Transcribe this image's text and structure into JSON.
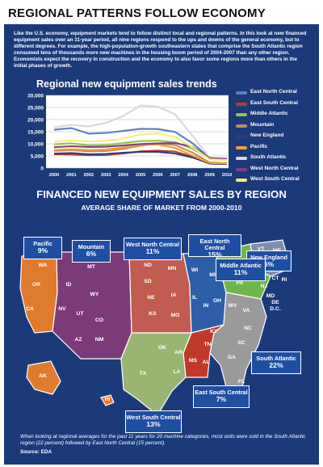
{
  "header": {
    "title": "REGIONAL PATTERNS FOLLOW ECONOMY"
  },
  "intro": "Like the U.S. economy, equipment markets tend to follow distinct local and regional patterns. In this look at new financed equipment sales over an 11-year period, all nine regions respond to the ups and downs of the general economy, but to different degrees. For example, the high-population-growth southeastern states that comprise the South Atlantic region consumed tens of thousands more new machines in the housing boom period of 2004-2007 than any other region. Economists expect the recovery in construction and the economy to also favor some regions more than others in the initial phases of growth.",
  "chart_data": [
    {
      "type": "line",
      "title": "Regional new equipment sales trends",
      "x": [
        "2000",
        "2001",
        "2002",
        "2003",
        "2004",
        "2005",
        "2006",
        "2007",
        "2008",
        "2009",
        "2010"
      ],
      "ylim": [
        0,
        30000
      ],
      "yticks": [
        "0",
        "5,000",
        "10,000",
        "15,000",
        "20,000",
        "25,000",
        "30,000"
      ],
      "grid": true,
      "legend_position": "right",
      "series": [
        {
          "name": "East North Central",
          "color": "#5a7fc0",
          "values": [
            15800,
            16500,
            14200,
            14500,
            15300,
            16200,
            16100,
            14900,
            10300,
            4200,
            4000
          ]
        },
        {
          "name": "East South Central",
          "color": "#c0392b",
          "values": [
            5700,
            5600,
            5300,
            5400,
            6000,
            6900,
            7200,
            6800,
            4700,
            1800,
            1700
          ]
        },
        {
          "name": "Middle Atlantic",
          "color": "#8fc64a",
          "values": [
            9800,
            10200,
            9400,
            9500,
            10300,
            11100,
            11300,
            10700,
            8000,
            3800,
            3600
          ]
        },
        {
          "name": "Mountain",
          "color": "#c28a63",
          "values": [
            7100,
            7400,
            6900,
            7000,
            7900,
            9200,
            10100,
            9500,
            6400,
            2300,
            2000
          ]
        },
        {
          "name": "New England",
          "color": "#2d3d7a",
          "values": [
            6000,
            6200,
            5700,
            5800,
            6300,
            6700,
            6700,
            6000,
            4400,
            1900,
            1700
          ]
        },
        {
          "name": "Pacific",
          "color": "#f2a22d",
          "values": [
            7500,
            7800,
            7500,
            7700,
            8500,
            9400,
            9700,
            8300,
            5200,
            2100,
            1900
          ]
        },
        {
          "name": "South Atlantic",
          "color": "#d9d9d9",
          "values": [
            16800,
            17800,
            17200,
            18600,
            21500,
            25800,
            25300,
            22200,
            13400,
            4300,
            3900
          ]
        },
        {
          "name": "West North Central",
          "color": "#8a3a82",
          "values": [
            8600,
            9000,
            8700,
            8800,
            9300,
            9900,
            10200,
            10300,
            8800,
            4100,
            3700
          ]
        },
        {
          "name": "West South Central",
          "color": "#f7ee7a",
          "values": [
            10900,
            11400,
            11000,
            11200,
            12200,
            13800,
            14300,
            12800,
            8600,
            3600,
            3300
          ]
        }
      ]
    },
    {
      "type": "table",
      "title": "FINANCED NEW EQUIPMENT SALES BY REGION",
      "subtitle": "AVERAGE SHARE OF MARKET FROM 2000-2010",
      "categories": [
        "Pacific",
        "Mountain",
        "West North Central",
        "East North Central",
        "New England",
        "Middle Atlantic",
        "South Atlantic",
        "East South Central",
        "West South Central"
      ],
      "values": [
        9,
        6,
        11,
        15,
        6,
        11,
        22,
        7,
        13
      ],
      "labels": [
        "9%",
        "6%",
        "11%",
        "15%",
        "6%",
        "11%",
        "22%",
        "7%",
        "13%"
      ],
      "region_colors": {
        "Pacific": "#e07b2e",
        "Mountain": "#7a3b78",
        "West North Central": "#c25c50",
        "East North Central": "#2f5ea8",
        "New England": "#7d8fb0",
        "Middle Atlantic": "#6fb64a",
        "South Atlantic": "#9a9a9a",
        "East South Central": "#c0392b",
        "West South Central": "#98b672"
      },
      "state_labels": {
        "Pacific": [
          "WA",
          "OR",
          "CA",
          "AK",
          "HI"
        ],
        "Mountain": [
          "MT",
          "ID",
          "WY",
          "NV",
          "UT",
          "CO",
          "AZ",
          "NM"
        ],
        "West North Central": [
          "ND",
          "SD",
          "MN",
          "NE",
          "IA",
          "KS",
          "MO"
        ],
        "East North Central": [
          "WI",
          "MI",
          "IL",
          "IN",
          "OH"
        ],
        "New England": [
          "VT",
          "ME",
          "NH",
          "MA",
          "CT",
          "RI"
        ],
        "Middle Atlantic": [
          "NY",
          "PA",
          "NJ"
        ],
        "South Atlantic": [
          "WV",
          "VA",
          "MD",
          "DE",
          "D.C.",
          "NC",
          "SC",
          "GA",
          "FL"
        ],
        "East South Central": [
          "KY",
          "TN",
          "MS",
          "AL"
        ],
        "West South Central": [
          "OK",
          "TX",
          "AR",
          "LA"
        ]
      }
    }
  ],
  "footer": {
    "note": "When looking at regional averages for the past 11 years for 20 machine categories, most units were sold in the South Atlantic region (22 percent) followed by East North Central (15 percent).",
    "source": "Source: EDA"
  }
}
